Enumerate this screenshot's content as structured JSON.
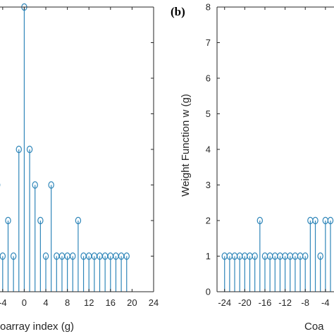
{
  "colors": {
    "stem": "#2f86b9",
    "axis": "#262626",
    "background": "#ffffff"
  },
  "chart_data": [
    {
      "type": "stem",
      "panel_label": "",
      "xlabel": "oarray index (g)",
      "ylabel": "",
      "xlim": [
        -4.5,
        24
      ],
      "ylim": [
        0,
        8
      ],
      "xticks": [
        -4,
        0,
        4,
        8,
        12,
        16,
        20,
        24
      ],
      "x": [
        -5,
        -4,
        -3,
        -2,
        -1,
        0,
        1,
        2,
        3,
        4,
        5,
        6,
        7,
        8,
        9,
        10,
        11,
        12,
        13,
        14,
        15,
        16,
        17,
        18,
        19
      ],
      "values": [
        3,
        1,
        2,
        1,
        4,
        8,
        4,
        3,
        2,
        1,
        3,
        1,
        1,
        1,
        1,
        2,
        1,
        1,
        1,
        1,
        1,
        1,
        1,
        1,
        1
      ]
    },
    {
      "type": "stem",
      "panel_label": "(b)",
      "xlabel": "Coa",
      "ylabel": "Weight Function w (g)",
      "xlim": [
        -25.5,
        -2.3
      ],
      "ylim": [
        0,
        8
      ],
      "xticks": [
        -24,
        -20,
        -16,
        -12,
        -8,
        -4
      ],
      "yticks": [
        0,
        1,
        2,
        3,
        4,
        5,
        6,
        7,
        8
      ],
      "x": [
        -24,
        -23,
        -22,
        -21,
        -20,
        -19,
        -18,
        -17,
        -16,
        -15,
        -14,
        -13,
        -12,
        -11,
        -10,
        -9,
        -8,
        -7,
        -6,
        -5,
        -4,
        -3
      ],
      "values": [
        1,
        1,
        1,
        1,
        1,
        1,
        1,
        2,
        1,
        1,
        1,
        1,
        1,
        1,
        1,
        1,
        1,
        2,
        2,
        1,
        2,
        2
      ]
    }
  ]
}
